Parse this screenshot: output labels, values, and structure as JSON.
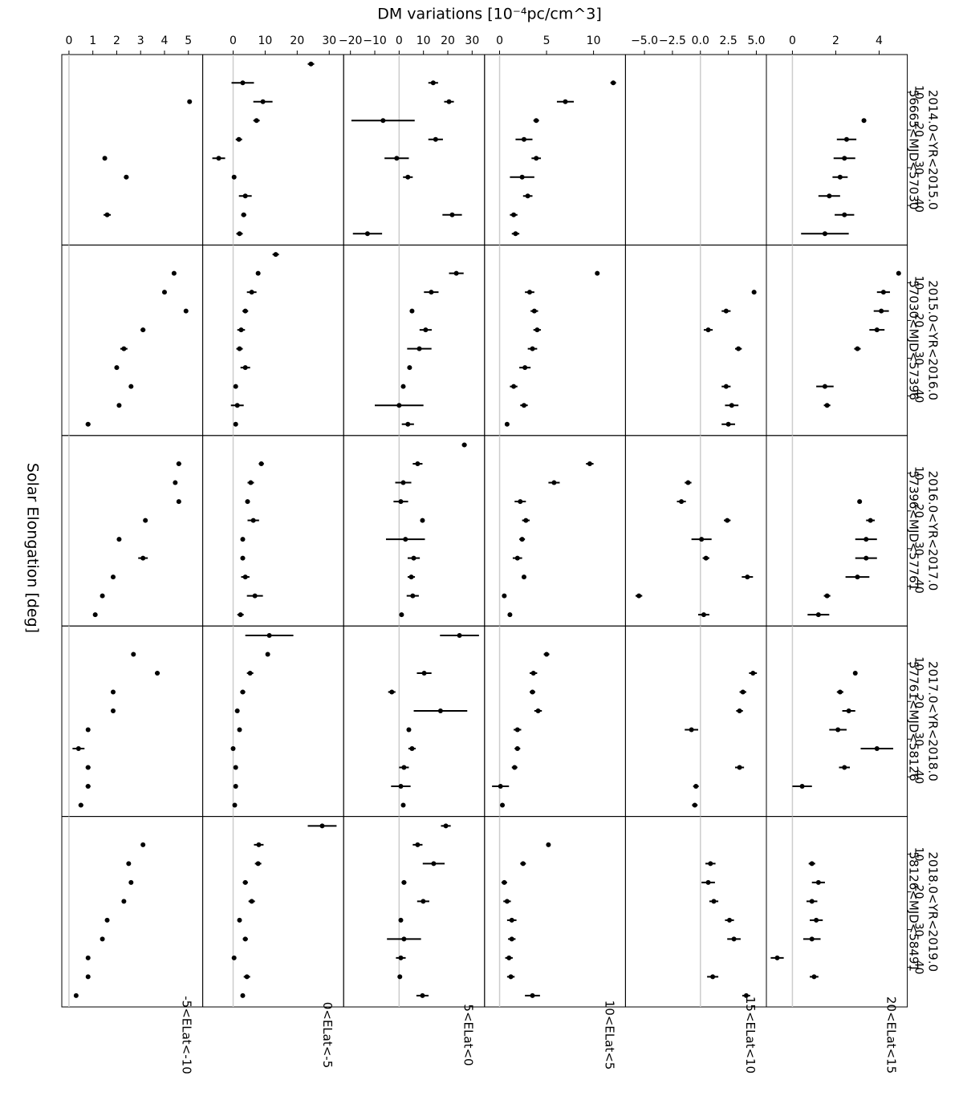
{
  "chart_data": {
    "type": "errorbar",
    "y_label": "DM variations [10⁻⁴pc/cm^3]",
    "x_label": "Solar Elongation [deg]",
    "color": "#000000",
    "zero_line_color": "#cccccc",
    "x": [
      2.5,
      7.5,
      12.5,
      17.5,
      22.5,
      27.5,
      32.5,
      37.5,
      42.5,
      47.5
    ],
    "xlim": [
      0,
      50.5
    ],
    "xticks": [
      10,
      20,
      30,
      40
    ],
    "columns": [
      {
        "title": "2014.0<YR<2015.0",
        "subtitle": "56665<MJD<57030"
      },
      {
        "title": "2015.0<YR<2016.0",
        "subtitle": "57030<MJD<57396"
      },
      {
        "title": "2016.0<YR<2017.0",
        "subtitle": "57396<MJD<57761"
      },
      {
        "title": "2017.0<YR<2018.0",
        "subtitle": "57761<MJD<58126"
      },
      {
        "title": "2018.0<YR<2019.0",
        "subtitle": "58126<MJD<58491"
      }
    ],
    "rows": [
      {
        "label": "20<ELat<15",
        "ylim": [
          -1.2,
          5.3
        ],
        "yticks": [
          0,
          2,
          4
        ],
        "panels": [
          {
            "values": [
              null,
              null,
              null,
              3.3,
              2.5,
              2.4,
              2.2,
              1.7,
              2.4,
              1.5
            ],
            "errors": [
              null,
              null,
              null,
              0.1,
              0.45,
              0.5,
              0.35,
              0.5,
              0.45,
              1.1
            ]
          },
          {
            "values": [
              null,
              4.9,
              4.2,
              4.1,
              3.9,
              3.0,
              null,
              1.5,
              1.6,
              null
            ],
            "errors": [
              null,
              0.05,
              0.3,
              0.35,
              0.35,
              0.15,
              null,
              0.4,
              0.15,
              null
            ]
          },
          {
            "values": [
              null,
              null,
              null,
              3.1,
              3.6,
              3.4,
              3.4,
              3.0,
              1.6,
              1.2
            ],
            "errors": [
              null,
              null,
              null,
              0.1,
              0.2,
              0.5,
              0.5,
              0.55,
              0.15,
              0.5
            ]
          },
          {
            "values": [
              null,
              null,
              2.9,
              2.2,
              2.6,
              2.1,
              3.9,
              2.4,
              0.45,
              null
            ],
            "errors": [
              null,
              null,
              0.1,
              0.15,
              0.3,
              0.4,
              0.75,
              0.25,
              0.45,
              null
            ]
          },
          {
            "values": [
              null,
              null,
              0.9,
              1.2,
              0.9,
              1.1,
              0.9,
              -0.7,
              1.0,
              null
            ],
            "errors": [
              null,
              null,
              0.15,
              0.3,
              0.25,
              0.3,
              0.4,
              0.3,
              0.2,
              null
            ]
          }
        ]
      },
      {
        "label": "15<ELat<10",
        "ylim": [
          -6.7,
          5.9
        ],
        "yticks": [
          {
            "value": -5,
            "label": "−5.0"
          },
          {
            "value": -2.5,
            "label": "−2.5"
          },
          {
            "value": 0,
            "label": "0.0"
          },
          2.5,
          {
            "value": 5,
            "label": "5.0"
          }
        ],
        "panels": [
          {
            "values": [
              null,
              null,
              null,
              null,
              null,
              null,
              null,
              null,
              null,
              null
            ],
            "errors": [
              null,
              null,
              null,
              null,
              null,
              null,
              null,
              null,
              null,
              null
            ]
          },
          {
            "values": [
              null,
              null,
              4.8,
              2.3,
              0.7,
              3.4,
              null,
              2.3,
              2.8,
              2.5
            ],
            "errors": [
              null,
              null,
              0.2,
              0.4,
              0.4,
              0.3,
              null,
              0.4,
              0.6,
              0.6
            ]
          },
          {
            "values": [
              null,
              null,
              -1.1,
              -1.7,
              2.4,
              0.1,
              0.5,
              4.2,
              -5.5,
              0.3
            ],
            "errors": [
              null,
              null,
              0.3,
              0.4,
              0.3,
              0.9,
              0.3,
              0.5,
              0.3,
              0.5
            ]
          },
          {
            "values": [
              null,
              null,
              4.7,
              3.8,
              3.5,
              -0.8,
              null,
              3.5,
              -0.4,
              -0.5
            ],
            "errors": [
              null,
              null,
              0.35,
              0.3,
              0.3,
              0.6,
              null,
              0.4,
              0.25,
              0.25
            ]
          },
          {
            "values": [
              null,
              null,
              0.9,
              0.7,
              1.2,
              2.6,
              3.0,
              null,
              1.1,
              4.1
            ],
            "errors": [
              null,
              null,
              0.45,
              0.6,
              0.4,
              0.4,
              0.6,
              null,
              0.5,
              0.35
            ]
          }
        ]
      },
      {
        "label": "10<ELat<5",
        "ylim": [
          -1.6,
          13.4
        ],
        "yticks": [
          0,
          5,
          10
        ],
        "panels": [
          {
            "values": [
              null,
              12.1,
              7.0,
              3.9,
              2.6,
              3.9,
              2.4,
              3.0,
              1.5,
              1.7
            ],
            "errors": [
              null,
              0.3,
              0.9,
              0.3,
              0.9,
              0.5,
              1.3,
              0.5,
              0.4,
              0.4
            ]
          },
          {
            "values": [
              null,
              10.4,
              3.2,
              3.7,
              4.0,
              3.5,
              2.7,
              1.5,
              2.6,
              0.8
            ],
            "errors": [
              null,
              0.1,
              0.5,
              0.4,
              0.4,
              0.5,
              0.6,
              0.4,
              0.4,
              0.2
            ]
          },
          {
            "values": [
              null,
              9.6,
              5.8,
              2.2,
              2.8,
              2.4,
              1.9,
              2.6,
              0.5,
              1.1
            ],
            "errors": [
              null,
              0.4,
              0.6,
              0.6,
              0.4,
              0.3,
              0.5,
              0.2,
              0.2,
              0.2
            ]
          },
          {
            "values": [
              null,
              5.0,
              3.6,
              3.5,
              4.1,
              1.9,
              1.9,
              1.6,
              0.1,
              0.3
            ],
            "errors": [
              null,
              0.3,
              0.4,
              0.3,
              0.4,
              0.4,
              0.3,
              0.3,
              0.9,
              0.2
            ]
          },
          {
            "values": [
              null,
              5.2,
              2.5,
              0.5,
              0.8,
              1.3,
              1.3,
              1.0,
              1.2,
              3.5
            ],
            "errors": [
              null,
              0.1,
              0.3,
              0.3,
              0.4,
              0.5,
              0.4,
              0.4,
              0.4,
              0.8
            ]
          }
        ]
      },
      {
        "label": "5<ELat<0",
        "ylim": [
          -22.8,
          35.1
        ],
        "yticks": [
          {
            "value": -20,
            "label": "−20"
          },
          {
            "value": -10,
            "label": "−10"
          },
          0,
          10,
          20,
          30
        ],
        "panels": [
          {
            "values": [
              null,
              14,
              20.5,
              -6.6,
              15,
              -1,
              3.6,
              null,
              21.8,
              -13
            ],
            "errors": [
              null,
              2,
              2,
              13,
              3,
              5,
              2,
              null,
              4,
              6
            ]
          },
          {
            "values": [
              null,
              23.5,
              13.2,
              5.3,
              10.9,
              8.3,
              4.3,
              1.7,
              0,
              3.6
            ],
            "errors": [
              null,
              3,
              3,
              0.5,
              2.5,
              5,
              0.5,
              0.3,
              10,
              2.5
            ]
          },
          {
            "values": [
              26.8,
              7.6,
              1.7,
              0.7,
              9.6,
              2.6,
              6,
              5,
              5.6,
              1
            ],
            "errors": [
              1,
              2,
              3.3,
              3,
              0.7,
              8,
              2.5,
              1.5,
              2.5,
              0.5
            ]
          },
          {
            "values": [
              24.8,
              null,
              10.3,
              -3,
              17,
              4,
              5.3,
              2,
              0.7,
              1.7
            ],
            "errors": [
              8,
              null,
              3,
              1.5,
              11,
              0.7,
              1.5,
              2,
              4,
              0.7
            ]
          },
          {
            "values": [
              19.2,
              7.6,
              14.2,
              2,
              9.9,
              0.7,
              2,
              0.7,
              0.3,
              9.6
            ],
            "errors": [
              2,
              2,
              4.5,
              1,
              2.5,
              0.5,
              7,
              2,
              0.5,
              2.5
            ]
          }
        ]
      },
      {
        "label": "0<ELat<-5",
        "ylim": [
          -9.5,
          34.5
        ],
        "yticks": [
          0,
          10,
          20,
          30
        ],
        "panels": [
          {
            "values": [
              24.3,
              3,
              9.3,
              7.3,
              1.8,
              -4.5,
              0.3,
              3.8,
              3.3,
              2
            ],
            "errors": [
              1,
              3.5,
              3,
              1,
              1,
              2,
              0.5,
              2,
              0.8,
              1
            ]
          },
          {
            "values": [
              13.3,
              7.8,
              5.8,
              3.8,
              2.5,
              2,
              3.8,
              0.8,
              1.3,
              0.8
            ],
            "errors": [
              1,
              0.5,
              1.5,
              0.9,
              1.2,
              1,
              1.5,
              0.5,
              2,
              0.5
            ]
          },
          {
            "values": [
              null,
              8.8,
              5.5,
              4.5,
              6.3,
              3,
              3,
              3.8,
              6.8,
              2.3
            ],
            "errors": [
              null,
              0.8,
              1,
              0.7,
              1.8,
              0.5,
              0.7,
              1.3,
              2.5,
              1
            ]
          },
          {
            "values": [
              11.3,
              10.8,
              5.3,
              3,
              1.3,
              2,
              0,
              0.8,
              0.8,
              0.5
            ],
            "errors": [
              7.5,
              0.4,
              1,
              0.8,
              0.7,
              0.5,
              0.3,
              0.4,
              0.4,
              0.3
            ]
          },
          {
            "values": [
              27.8,
              8,
              7.8,
              3.8,
              5.8,
              2,
              3.8,
              0.3,
              4.3,
              3
            ],
            "errors": [
              4.5,
              1.5,
              1,
              0.8,
              1,
              0.5,
              0.8,
              0.7,
              1,
              0.6
            ]
          }
        ]
      },
      {
        "label": "-5<ELat<-10",
        "ylim": [
          -0.3,
          5.6
        ],
        "yticks": [
          0,
          1,
          2,
          3,
          4,
          5
        ],
        "panels": [
          {
            "values": [
              null,
              null,
              5.05,
              null,
              null,
              1.5,
              2.4,
              null,
              1.6,
              null
            ],
            "errors": [
              null,
              null,
              0.05,
              null,
              null,
              0.05,
              0.1,
              null,
              0.15,
              null
            ]
          },
          {
            "values": [
              null,
              4.4,
              4.0,
              4.9,
              3.1,
              2.3,
              2.0,
              2.6,
              2.1,
              0.8
            ],
            "errors": [
              null,
              0.05,
              0.05,
              0.05,
              0.1,
              0.15,
              0.05,
              0.05,
              0.05,
              0.1
            ]
          },
          {
            "values": [
              null,
              4.6,
              4.45,
              4.6,
              3.2,
              2.1,
              3.1,
              1.85,
              1.4,
              1.1
            ],
            "errors": [
              null,
              0.1,
              0.05,
              0.05,
              0.05,
              0.05,
              0.2,
              0.05,
              0.05,
              0.05
            ]
          },
          {
            "values": [
              null,
              2.7,
              3.7,
              1.85,
              1.85,
              0.8,
              0.4,
              0.8,
              0.8,
              0.5
            ],
            "errors": [
              null,
              0.05,
              0.1,
              0.05,
              0.05,
              0.05,
              0.25,
              0.1,
              0.1,
              0.1
            ]
          },
          {
            "values": [
              null,
              3.1,
              2.5,
              2.6,
              2.3,
              1.6,
              1.4,
              0.8,
              0.8,
              0.3
            ],
            "errors": [
              null,
              0.05,
              0.05,
              0.05,
              0.05,
              0.05,
              0.05,
              0.05,
              0.05,
              0.05
            ]
          }
        ]
      }
    ]
  }
}
